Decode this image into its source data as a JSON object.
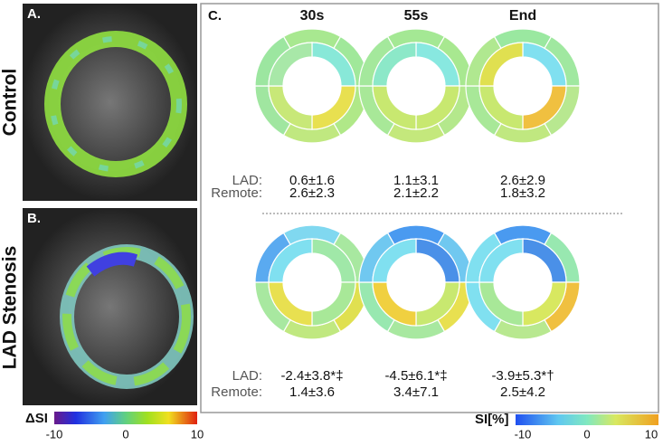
{
  "panel_a": {
    "label": "A.",
    "row_label": "Control"
  },
  "panel_b": {
    "label": "B.",
    "row_label": "LAD Stenosis"
  },
  "left_colorbar": {
    "title": "ΔSI",
    "ticks": [
      "-10",
      "0",
      "10"
    ]
  },
  "panel_c": {
    "label": "C.",
    "columns": [
      "30s",
      "55s",
      "End"
    ],
    "rows": [
      {
        "lad_label": "LAD:",
        "remote_label": "Remote:",
        "lad": [
          "0.6±1.6",
          "1.1±3.1",
          "2.6±2.9"
        ],
        "remote": [
          "2.6±2.3",
          "2.1±2.2",
          "1.8±3.2"
        ],
        "bullseyes": [
          {
            "outer": [
              "#a8e890",
              "#a0e89a",
              "#b0e888",
              "#c0e880",
              "#a0e6a0",
              "#9ce6a0"
            ],
            "inner": [
              "#88e8d8",
              "#e8e050",
              "#c8e878",
              "#a8e8a8"
            ]
          },
          {
            "outer": [
              "#a4e894",
              "#a8e890",
              "#b4e88c",
              "#c4e87c",
              "#a8e898",
              "#a4e89c"
            ],
            "inner": [
              "#88e8e0",
              "#c8e870",
              "#c8e870",
              "#8ce8c8"
            ]
          },
          {
            "outer": [
              "#9ae8a0",
              "#a0e8a0",
              "#b8e890",
              "#c0e880",
              "#a8e898",
              "#b0e890"
            ],
            "inner": [
              "#80e0f0",
              "#f0c040",
              "#c8e870",
              "#e0e050"
            ]
          }
        ]
      },
      {
        "lad_label": "LAD:",
        "remote_label": "Remote:",
        "lad": [
          "-2.4±3.8*‡",
          "-4.5±6.1*‡",
          "-3.9±5.3*†"
        ],
        "remote": [
          "1.4±3.6",
          "3.4±7.1",
          "2.5±4.2"
        ],
        "bullseyes": [
          {
            "outer": [
              "#80d8f0",
              "#a8e8a0",
              "#e0e050",
              "#c0e880",
              "#a8e8a0",
              "#5aaaf0"
            ],
            "inner": [
              "#a0e8a8",
              "#a8e898",
              "#e8e050",
              "#80e0f0"
            ]
          },
          {
            "outer": [
              "#4a9af0",
              "#70c8f0",
              "#e8e050",
              "#a8e8a0",
              "#98e8b0",
              "#70c8f0"
            ],
            "inner": [
              "#4a90e8",
              "#c8e870",
              "#f0d040",
              "#80e0f0"
            ]
          },
          {
            "outer": [
              "#4a9af0",
              "#98e8b0",
              "#f0c040",
              "#b8e890",
              "#80e0f0",
              "#80e0f0"
            ],
            "inner": [
              "#4a90e8",
              "#d8e860",
              "#a8e898",
              "#80e0f0"
            ]
          }
        ]
      }
    ],
    "colorbar": {
      "title": "SI[%]",
      "ticks": [
        "-10",
        "0",
        "10"
      ]
    }
  }
}
